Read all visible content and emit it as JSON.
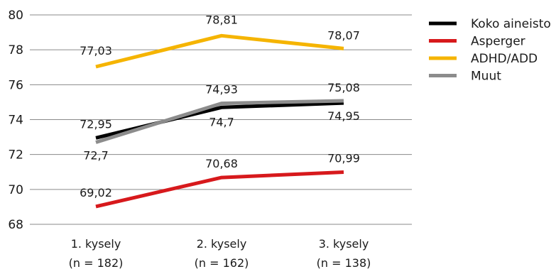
{
  "chart_data": {
    "type": "line",
    "categories": [
      [
        "1. kysely",
        "(n = 182)"
      ],
      [
        "2. kysely",
        "(n = 162)"
      ],
      [
        "3. kysely",
        "(n = 138)"
      ]
    ],
    "ylim": [
      68,
      80
    ],
    "yticks": [
      68,
      70,
      72,
      74,
      76,
      78,
      80
    ],
    "grid": true,
    "legend_position": "top-right",
    "series": [
      {
        "name": "Koko aineisto",
        "color": "#000000",
        "values": [
          72.95,
          74.7,
          74.95
        ],
        "labels": [
          "72,95",
          "74,7",
          "74,95"
        ]
      },
      {
        "name": "Asperger",
        "color": "#d7191c",
        "values": [
          69.02,
          70.68,
          70.99
        ],
        "labels": [
          "69,02",
          "70,68",
          "70,99"
        ]
      },
      {
        "name": "ADHD/ADD",
        "color": "#f5b400",
        "values": [
          77.03,
          78.81,
          78.07
        ],
        "labels": [
          "77,03",
          "78,81",
          "78,07"
        ]
      },
      {
        "name": "Muut",
        "color": "#8c8c8c",
        "values": [
          72.7,
          74.93,
          75.08
        ],
        "labels": [
          "72,7",
          "74,93",
          "75,08"
        ]
      }
    ]
  }
}
